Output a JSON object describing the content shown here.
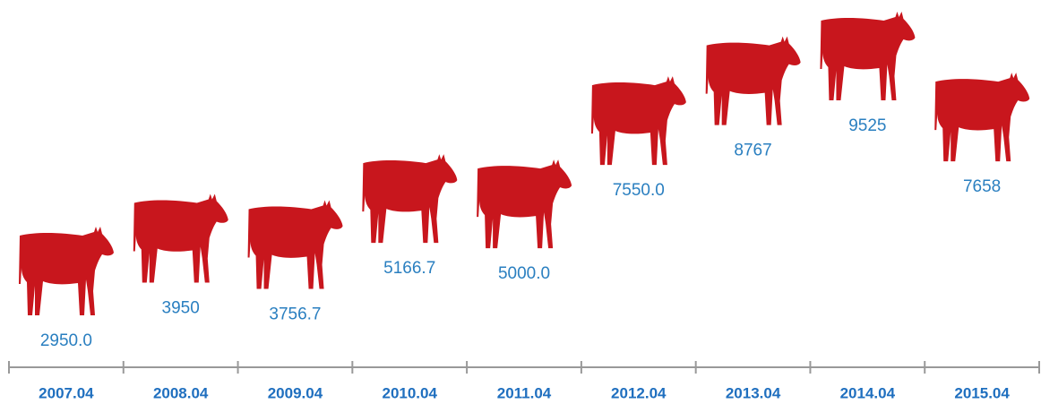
{
  "chart_data": {
    "type": "pictograph",
    "categories": [
      "2007.04",
      "2008.04",
      "2009.04",
      "2010.04",
      "2011.04",
      "2012.04",
      "2013.04",
      "2014.04",
      "2015.04"
    ],
    "values": [
      2950,
      3950,
      3756.7,
      5166.7,
      5000,
      7550,
      8767,
      9525,
      7658
    ],
    "value_labels": [
      "2950.0",
      "3950",
      "3756.7",
      "5166.7",
      "5000.0",
      "7550.0",
      "8767",
      "9525",
      "7658"
    ],
    "color": "#c8161d"
  }
}
